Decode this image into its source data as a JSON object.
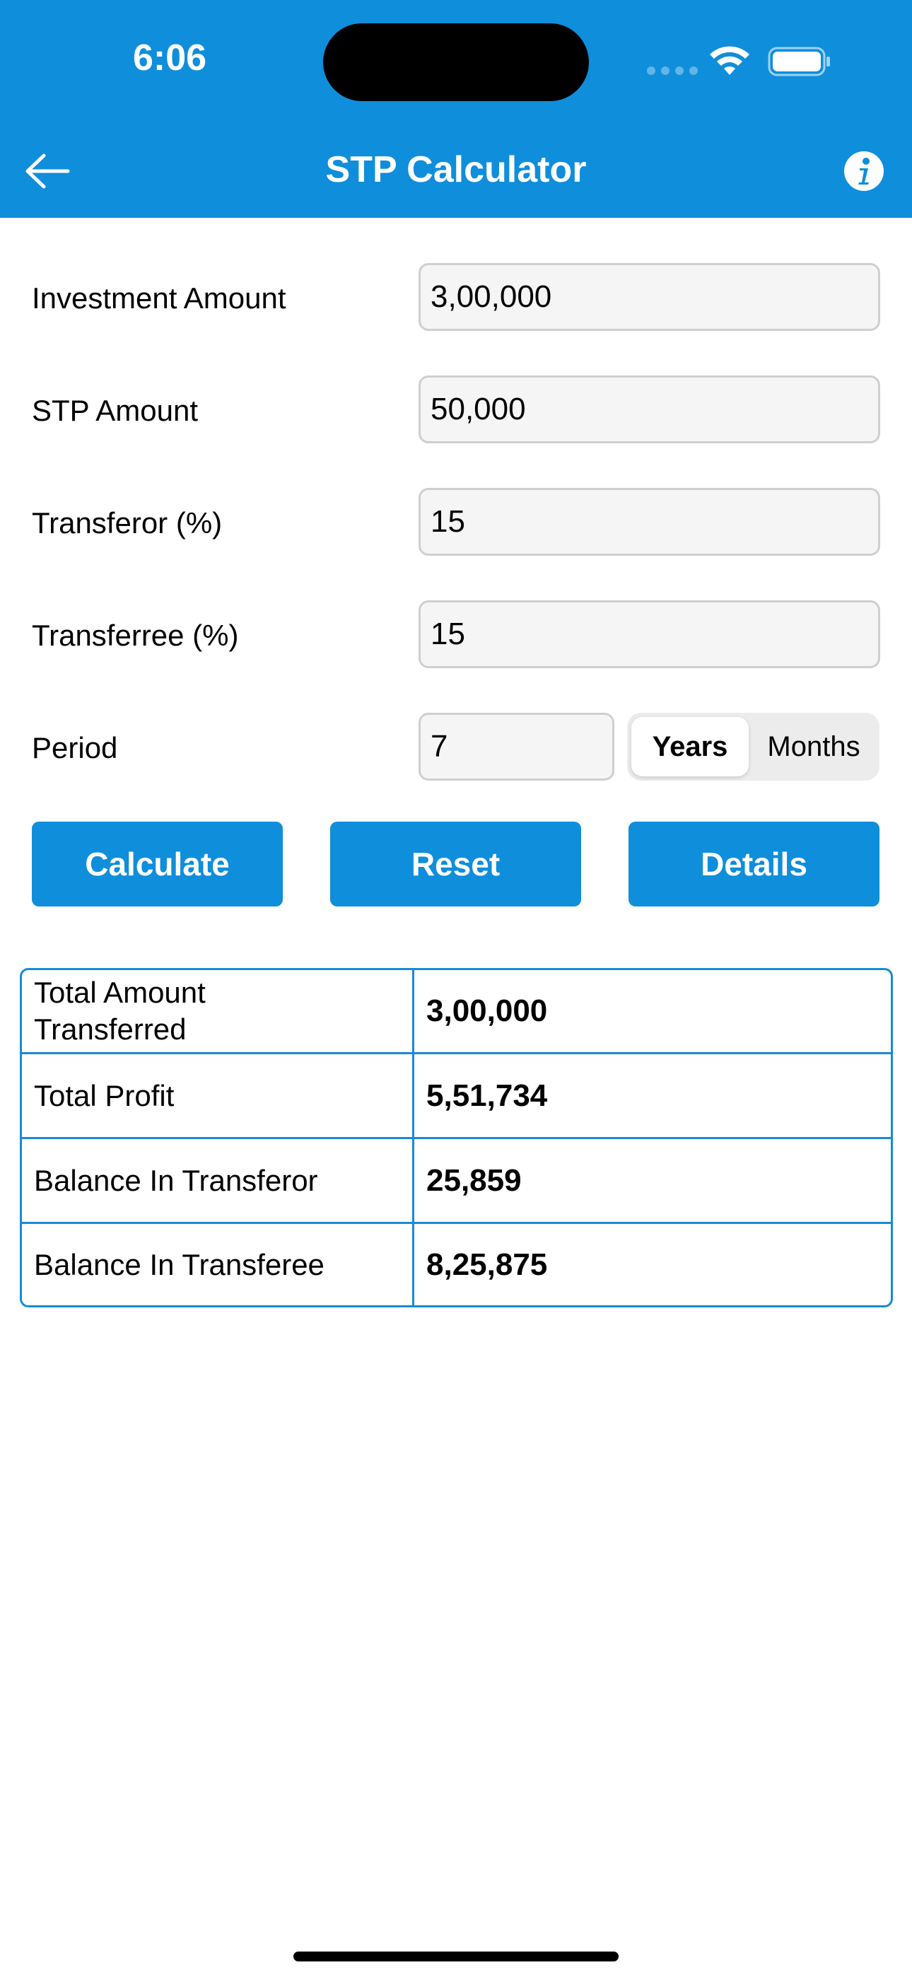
{
  "status_bar": {
    "time": "6:06"
  },
  "header": {
    "title": "STP Calculator"
  },
  "form": {
    "investment_amount": {
      "label": "Investment Amount",
      "value": "3,00,000"
    },
    "stp_amount": {
      "label": "STP Amount",
      "value": "50,000"
    },
    "transferor": {
      "label": "Transferor (%)",
      "value": "15"
    },
    "transferee": {
      "label": "Transferree (%)",
      "value": "15"
    },
    "period": {
      "label": "Period",
      "value": "7",
      "options": [
        "Years",
        "Months"
      ],
      "selected": "Years"
    }
  },
  "buttons": {
    "calculate": "Calculate",
    "reset": "Reset",
    "details": "Details"
  },
  "results": {
    "rows": [
      {
        "label": "Total Amount Transferred",
        "value": "3,00,000"
      },
      {
        "label": "Total Profit",
        "value": "5,51,734"
      },
      {
        "label": "Balance In Transferor",
        "value": "25,859"
      },
      {
        "label": "Balance In Transferee",
        "value": "8,25,875"
      }
    ]
  },
  "colors": {
    "accent": "#0f8edb",
    "border": "#1a8ad4"
  },
  "icons": {
    "back": "arrow-left-icon",
    "info": "info-icon",
    "wifi": "wifi-icon",
    "battery": "battery-icon"
  }
}
